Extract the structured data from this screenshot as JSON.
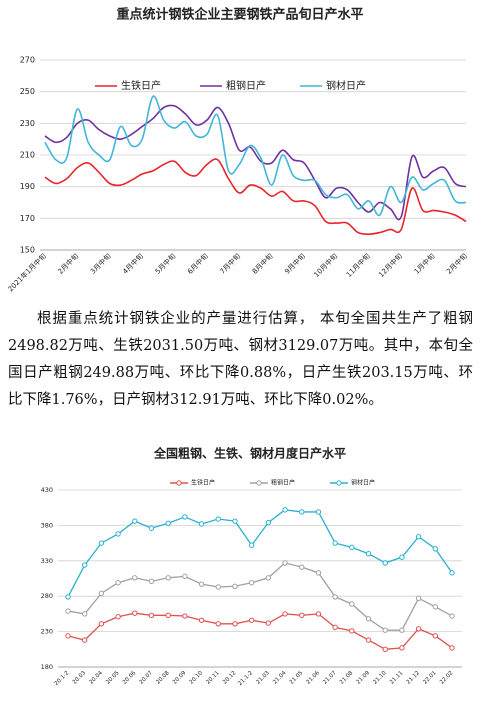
{
  "chart_data": [
    {
      "type": "line",
      "title": "重点统计钢铁企业主要钢铁产品旬日产水平",
      "smooth": true,
      "grid": true,
      "categories": [
        "2021年1月中旬",
        null,
        null,
        "2月中旬",
        null,
        null,
        "3月中旬",
        null,
        null,
        "4月中旬",
        null,
        null,
        "5月中旬",
        null,
        null,
        "6月中旬",
        null,
        null,
        "7月中旬",
        null,
        null,
        "8月中旬",
        null,
        null,
        "9月中旬",
        null,
        null,
        "10月中旬",
        null,
        null,
        "11月中旬",
        null,
        null,
        "12月中旬",
        null,
        null,
        "1月中旬",
        null,
        null,
        "2月中旬"
      ],
      "series": [
        {
          "name": "生铁日产",
          "color": "#e8252a",
          "values": [
            196,
            192,
            195,
            202,
            205,
            199,
            192,
            191,
            194,
            198,
            200,
            204,
            206,
            199,
            197,
            204,
            207,
            195,
            186,
            191,
            189,
            184,
            187,
            181,
            181,
            178,
            168,
            167,
            167,
            161,
            160,
            161,
            163,
            163,
            189,
            175,
            175,
            174,
            172,
            168
          ]
        },
        {
          "name": "粗钢日产",
          "color": "#7030a0",
          "values": [
            222,
            218,
            221,
            230,
            232,
            226,
            222,
            220,
            223,
            228,
            233,
            240,
            241,
            236,
            229,
            232,
            240,
            230,
            213,
            215,
            206,
            205,
            213,
            207,
            205,
            194,
            183,
            189,
            188,
            180,
            174,
            180,
            176,
            171,
            209,
            196,
            200,
            202,
            192,
            190
          ]
        },
        {
          "name": "钢材日产",
          "color": "#41b6d8",
          "values": [
            218,
            207,
            208,
            239,
            218,
            210,
            207,
            228,
            216,
            220,
            247,
            232,
            227,
            231,
            222,
            223,
            235,
            200,
            204,
            216,
            208,
            191,
            210,
            197,
            194,
            194,
            185,
            183,
            185,
            176,
            181,
            172,
            190,
            180,
            196,
            188,
            192,
            194,
            181,
            180
          ]
        }
      ],
      "ylim": [
        150,
        270
      ],
      "yticks": [
        150,
        170,
        190,
        210,
        230,
        250,
        270
      ]
    },
    {
      "type": "line",
      "title": "全国粗钢、生铁、钢材月度日产水平",
      "smooth": false,
      "markers": true,
      "grid": true,
      "categories": [
        "20.1-2",
        "20.03",
        "20.04",
        "20.05",
        "20.06",
        "20.07",
        "20.08",
        "20.09",
        "20.10",
        "20.11",
        "20.12",
        "21.1-2",
        "21.03",
        "21.04",
        "21.05",
        "21.06",
        "21.07",
        "21.08",
        "21.09",
        "21.10",
        "21.11",
        "21.12",
        "22.01",
        "22.02"
      ],
      "series": [
        {
          "name": "生铁日产",
          "color": "#e05050",
          "values": [
            224,
            218,
            241,
            251,
            256,
            253,
            253,
            252,
            246,
            241,
            241,
            246,
            242,
            255,
            253,
            255,
            236,
            231,
            218,
            205,
            207,
            234,
            224,
            207
          ]
        },
        {
          "name": "粗钢日产",
          "color": "#a0a0a0",
          "values": [
            259,
            255,
            284,
            299,
            306,
            301,
            306,
            308,
            297,
            293,
            294,
            299,
            306,
            327,
            321,
            313,
            279,
            269,
            248,
            232,
            232,
            277,
            265,
            252
          ]
        },
        {
          "name": "钢材日产",
          "color": "#2ab0d0",
          "values": [
            279,
            324,
            355,
            368,
            386,
            376,
            383,
            392,
            382,
            389,
            386,
            352,
            384,
            402,
            399,
            399,
            355,
            349,
            340,
            327,
            335,
            364,
            347,
            313
          ]
        }
      ],
      "ylim": [
        180,
        430
      ],
      "yticks": [
        180,
        230,
        280,
        330,
        380,
        430
      ]
    }
  ],
  "text": "根据重点统计钢铁企业的产量进行估算， 本旬全国共生产了粗钢2498.82万吨、生铁2031.50万吨、钢材3129.07万吨。其中，本旬全国日产粗钢249.88万吨、环比下降0.88%，日产生铁203.15万吨、环比下降1.76%，日产钢材312.91万吨、环比下降0.02%。"
}
